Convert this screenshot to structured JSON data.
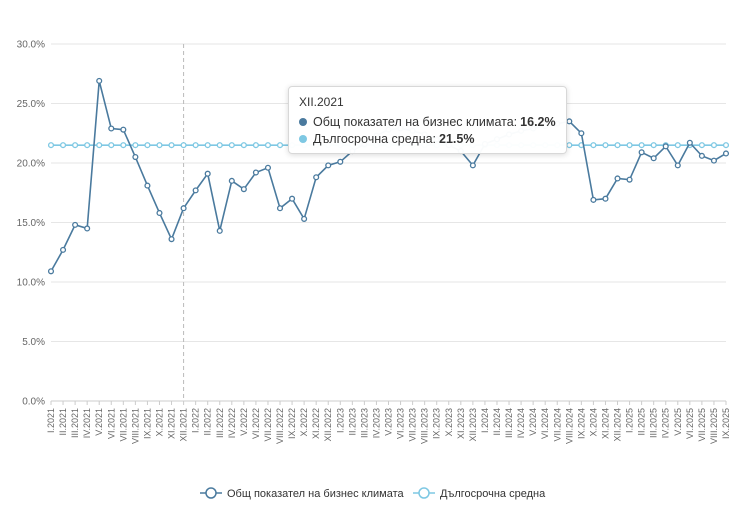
{
  "chart_data": {
    "type": "line",
    "ylim": [
      0,
      30
    ],
    "yticks": [
      "0.0%",
      "5.0%",
      "10.0%",
      "15.0%",
      "20.0%",
      "25.0%",
      "30.0%"
    ],
    "categories": [
      "I.2021",
      "II.2021",
      "III.2021",
      "IV.2021",
      "V.2021",
      "VI.2021",
      "VII.2021",
      "VIII.2021",
      "IX.2021",
      "X.2021",
      "XI.2021",
      "XII.2021",
      "I.2022",
      "II.2022",
      "III.2022",
      "IV.2022",
      "V.2022",
      "VI.2022",
      "VII.2022",
      "VIII.2022",
      "IX.2022",
      "X.2022",
      "XI.2022",
      "XII.2022",
      "I.2023",
      "II.2023",
      "III.2023",
      "IV.2023",
      "V.2023",
      "VI.2023",
      "VII.2023",
      "VIII.2023",
      "IX.2023",
      "X.2023",
      "XI.2023",
      "XII.2023",
      "I.2024",
      "II.2024",
      "III.2024",
      "IV.2024",
      "V.2024",
      "VI.2024",
      "VII.2024",
      "VIII.2024",
      "IX.2024",
      "X.2024",
      "XI.2024",
      "XII.2024",
      "I.2025",
      "II.2025",
      "III.2025",
      "IV.2025",
      "V.2025",
      "VI.2025",
      "VII.2025",
      "VIII.2025",
      "IX.2025"
    ],
    "series": [
      {
        "name": "Общ показател на бизнес климата",
        "color": "#4a7a9e",
        "values": [
          10.9,
          12.7,
          14.8,
          14.5,
          26.9,
          22.9,
          22.8,
          20.5,
          18.1,
          15.8,
          13.6,
          16.2,
          17.7,
          19.1,
          14.3,
          18.5,
          17.8,
          19.2,
          19.6,
          16.2,
          17.0,
          15.3,
          18.8,
          19.8,
          20.1,
          21.0,
          21.6,
          22.3,
          22.8,
          22.9,
          22.7,
          22.4,
          22.0,
          21.5,
          21.0,
          19.8,
          21.6,
          22.0,
          22.4,
          22.7,
          22.9,
          23.1,
          23.3,
          23.5,
          22.5,
          16.9,
          17.0,
          18.7,
          18.6,
          20.9,
          20.4,
          21.4,
          19.8,
          21.7,
          20.6,
          20.2,
          20.8
        ]
      },
      {
        "name": "Дългосрочна средна",
        "color": "#7ec8e3",
        "values": [
          21.5,
          21.5,
          21.5,
          21.5,
          21.5,
          21.5,
          21.5,
          21.5,
          21.5,
          21.5,
          21.5,
          21.5,
          21.5,
          21.5,
          21.5,
          21.5,
          21.5,
          21.5,
          21.5,
          21.5,
          21.5,
          21.5,
          21.5,
          21.5,
          21.5,
          21.5,
          21.5,
          21.5,
          21.5,
          21.5,
          21.5,
          21.5,
          21.5,
          21.5,
          21.5,
          21.5,
          21.5,
          21.5,
          21.5,
          21.5,
          21.5,
          21.5,
          21.5,
          21.5,
          21.5,
          21.5,
          21.5,
          21.5,
          21.5,
          21.5,
          21.5,
          21.5,
          21.5,
          21.5,
          21.5,
          21.5,
          21.5
        ]
      }
    ],
    "legend_position": "bottom",
    "tooltip": {
      "category_index": 11,
      "title": "XII.2021",
      "rows": [
        {
          "label": "Общ показател на бизнес климата:",
          "value": "16.2%",
          "color": "#4a7a9e"
        },
        {
          "label": "Дългосрочна средна:",
          "value": "21.5%",
          "color": "#7ec8e3"
        }
      ]
    }
  }
}
